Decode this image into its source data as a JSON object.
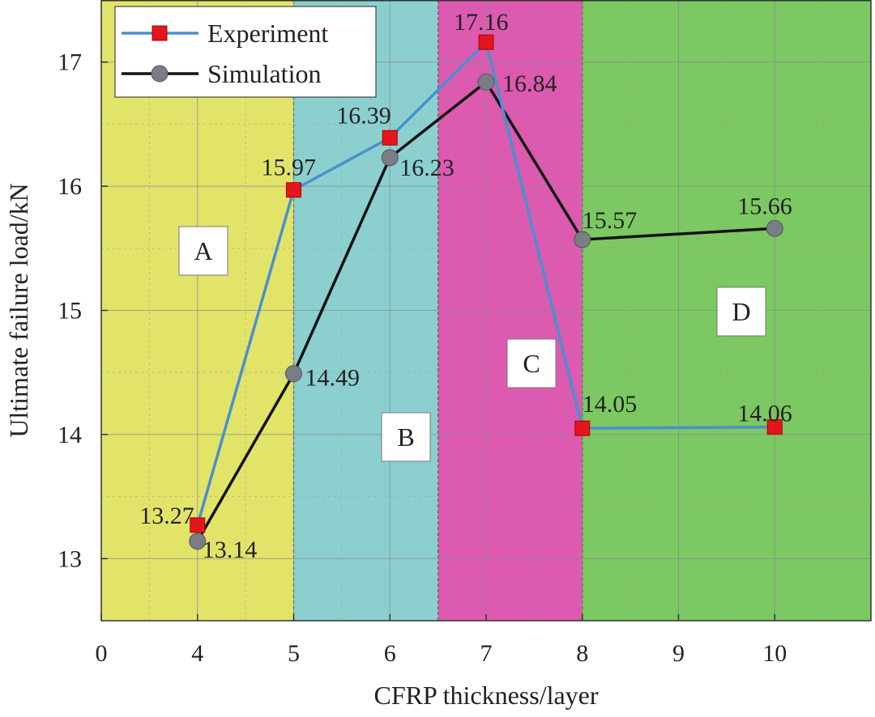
{
  "chart_data": {
    "type": "line",
    "xlabel": "CFRP thickness/layer",
    "ylabel": "Ultimate failure load/kN",
    "x_tick_labels": [
      "0",
      "4",
      "5",
      "6",
      "7",
      "8",
      "9",
      "10"
    ],
    "y_ticks": [
      13,
      14,
      15,
      16,
      17
    ],
    "y_tick_labels": [
      "13",
      "14",
      "15",
      "16",
      "17"
    ],
    "ylim": [
      12.5,
      17.5
    ],
    "grid": true,
    "legend_position": "top-left",
    "series": [
      {
        "name": "Experiment",
        "color": "#4a90cf",
        "marker": "square",
        "marker_color": "#e3161b",
        "x": [
          "4",
          "5",
          "6",
          "7",
          "8",
          "10"
        ],
        "y": [
          13.27,
          15.97,
          16.39,
          17.16,
          14.05,
          14.06
        ],
        "labels": [
          "13.27",
          "15.97",
          "16.39",
          "17.16",
          "14.05",
          "14.06"
        ]
      },
      {
        "name": "Simulation",
        "color": "#111111",
        "marker": "circle",
        "marker_color": "#7a7d85",
        "x": [
          "4",
          "5",
          "6",
          "7",
          "8",
          "10"
        ],
        "y": [
          13.14,
          14.49,
          16.23,
          16.84,
          15.57,
          15.66
        ],
        "labels": [
          "13.14",
          "14.49",
          "16.23",
          "16.84",
          "15.57",
          "15.66"
        ]
      }
    ],
    "regions": [
      {
        "label": "A",
        "from": "0",
        "to": "5",
        "color": "#e2e46a"
      },
      {
        "label": "B",
        "from": "5",
        "to": "6.5",
        "color": "#8bd0cf"
      },
      {
        "label": "C",
        "from": "6.5",
        "to": "8",
        "color": "#dc5ab0"
      },
      {
        "label": "D",
        "from": "8",
        "to": "end",
        "color": "#7cc862"
      }
    ]
  }
}
